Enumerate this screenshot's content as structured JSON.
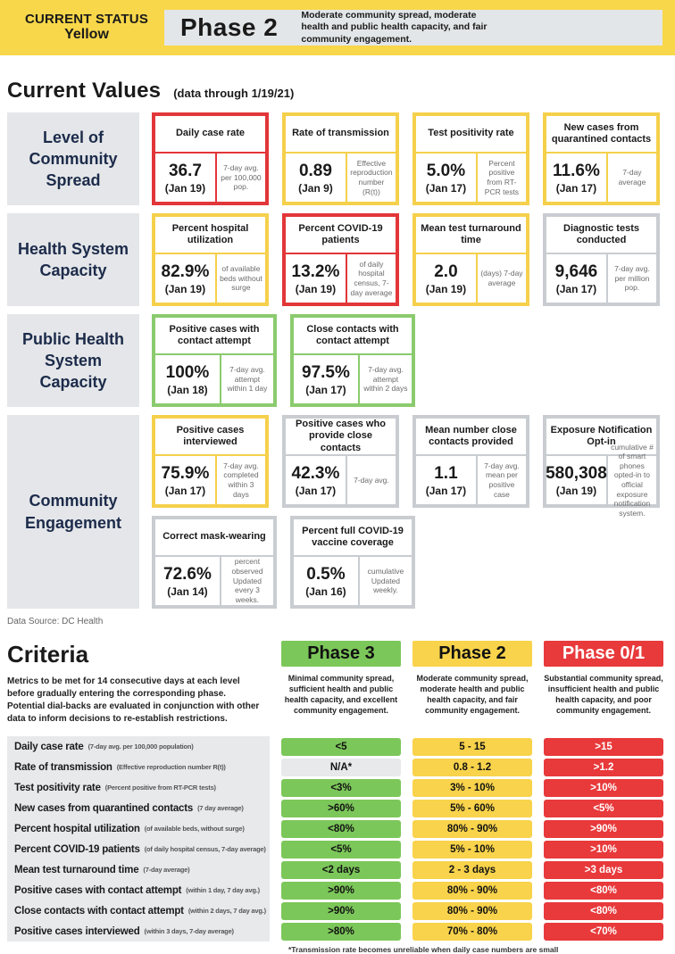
{
  "banner": {
    "status_label": "CURRENT STATUS",
    "status_value": "Yellow",
    "phase": "Phase 2",
    "phase_description": "Moderate community spread, moderate health and public health capacity, and fair community engagement."
  },
  "current_values": {
    "title": "Current Values",
    "note": "(data through 1/19/21)",
    "groups": [
      {
        "label": "Level of Community Spread",
        "rows": [
          [
            {
              "title": "Daily case rate",
              "value": "36.7",
              "date": "(Jan 19)",
              "desc": "7-day avg. per 100,000 pop.",
              "status": "red"
            },
            {
              "title": "Rate of transmission",
              "value": "0.89",
              "date": "(Jan 9)",
              "desc": "Effective reproduction number (R(t))",
              "status": "yellow"
            },
            {
              "title": "Test positivity rate",
              "value": "5.0%",
              "date": "(Jan 17)",
              "desc": "Percent positive from RT-PCR tests",
              "status": "yellow"
            },
            {
              "title": "New cases from quarantined contacts",
              "value": "11.6%",
              "date": "(Jan 17)",
              "desc": "7-day average",
              "status": "yellow"
            }
          ]
        ]
      },
      {
        "label": "Health System Capacity",
        "rows": [
          [
            {
              "title": "Percent hospital utilization",
              "value": "82.9%",
              "date": "(Jan 19)",
              "desc": "of available beds without surge",
              "status": "yellow"
            },
            {
              "title": "Percent COVID-19 patients",
              "value": "13.2%",
              "date": "(Jan 19)",
              "desc": "of daily hospital census, 7-day average",
              "status": "red"
            },
            {
              "title": "Mean test turnaround time",
              "value": "2.0",
              "date": "(Jan 19)",
              "desc": "(days) 7-day average",
              "status": "yellow"
            },
            {
              "title": "Diagnostic tests conducted",
              "value": "9,646",
              "date": "(Jan 17)",
              "desc": "7-day avg. per million pop.",
              "status": "gray"
            }
          ]
        ]
      },
      {
        "label": "Public Health System Capacity",
        "rows": [
          [
            {
              "title": "Positive cases with contact attempt",
              "value": "100%",
              "date": "(Jan 18)",
              "desc": "7-day avg. attempt within 1 day",
              "status": "green"
            },
            {
              "title": "Close contacts with contact attempt",
              "value": "97.5%",
              "date": "(Jan 17)",
              "desc": "7-day avg. attempt within 2 days",
              "status": "green"
            }
          ]
        ]
      },
      {
        "label": "Community Engagement",
        "rows": [
          [
            {
              "title": "Positive cases interviewed",
              "value": "75.9%",
              "date": "(Jan 17)",
              "desc": "7-day avg. completed within 3 days",
              "status": "yellow"
            },
            {
              "title": "Positive cases who provide close contacts",
              "value": "42.3%",
              "date": "(Jan 17)",
              "desc": "7-day avg.",
              "status": "gray"
            },
            {
              "title": "Mean number close contacts provided",
              "value": "1.1",
              "date": "(Jan 17)",
              "desc": "7-day avg. mean per positive case",
              "status": "gray"
            },
            {
              "title": "Exposure Notification Opt-in",
              "value": "580,308",
              "date": "(Jan 19)",
              "desc": "cumulative # of smart phones opted-in to official exposure notification system.",
              "status": "gray"
            }
          ],
          [
            {
              "title": "Correct mask-wearing",
              "value": "72.6%",
              "date": "(Jan 14)",
              "desc": "percent observed Updated every 3 weeks.",
              "status": "gray"
            },
            {
              "title": "Percent full COVID-19 vaccine coverage",
              "value": "0.5%",
              "date": "(Jan 16)",
              "desc": "cumulative Updated weekly.",
              "status": "gray"
            }
          ]
        ]
      }
    ]
  },
  "data_source": "Data Source: DC Health",
  "criteria": {
    "title": "Criteria",
    "description": "Metrics to be met for 14 consecutive days at each level before gradually entering the corresponding phase. Potential dial-backs are evaluated in conjunction with other data to inform decisions to re-establish restrictions.",
    "phases": [
      {
        "name": "Phase 3",
        "color": "green",
        "description": "Minimal community spread, sufficient health and public health capacity, and excellent community engagement."
      },
      {
        "name": "Phase 2",
        "color": "yellow",
        "description": "Moderate community spread, moderate health and public health capacity, and fair community engagement."
      },
      {
        "name": "Phase 0/1",
        "color": "red",
        "description": "Substantial community spread, insufficient health and public health capacity, and poor community engagement."
      }
    ],
    "rows": [
      {
        "label": "Daily case rate",
        "sublabel": "(7-day avg. per 100,000 population)",
        "values": [
          {
            "text": "<5",
            "color": "green"
          },
          {
            "text": "5 - 15",
            "color": "yellow"
          },
          {
            "text": ">15",
            "color": "red"
          }
        ]
      },
      {
        "label": "Rate of transmission",
        "sublabel": "(Effective reproduction number R(t))",
        "values": [
          {
            "text": "N/A*",
            "color": "gray"
          },
          {
            "text": "0.8 - 1.2",
            "color": "yellow"
          },
          {
            "text": ">1.2",
            "color": "red"
          }
        ]
      },
      {
        "label": "Test positivity rate",
        "sublabel": "(Percent positive from RT-PCR tests)",
        "values": [
          {
            "text": "<3%",
            "color": "green"
          },
          {
            "text": "3% - 10%",
            "color": "yellow"
          },
          {
            "text": ">10%",
            "color": "red"
          }
        ]
      },
      {
        "label": "New cases from quarantined contacts",
        "sublabel": "(7 day average)",
        "values": [
          {
            "text": ">60%",
            "color": "green"
          },
          {
            "text": "5% - 60%",
            "color": "yellow"
          },
          {
            "text": "<5%",
            "color": "red"
          }
        ]
      },
      {
        "label": "Percent hospital utilization",
        "sublabel": "(of available beds, without surge)",
        "values": [
          {
            "text": "<80%",
            "color": "green"
          },
          {
            "text": "80% - 90%",
            "color": "yellow"
          },
          {
            "text": ">90%",
            "color": "red"
          }
        ]
      },
      {
        "label": "Percent COVID-19 patients",
        "sublabel": "(of daily hospital census, 7-day average)",
        "values": [
          {
            "text": "<5%",
            "color": "green"
          },
          {
            "text": "5% - 10%",
            "color": "yellow"
          },
          {
            "text": ">10%",
            "color": "red"
          }
        ]
      },
      {
        "label": "Mean test turnaround time",
        "sublabel": "(7-day average)",
        "values": [
          {
            "text": "<2 days",
            "color": "green"
          },
          {
            "text": "2 - 3 days",
            "color": "yellow"
          },
          {
            "text": ">3 days",
            "color": "red"
          }
        ]
      },
      {
        "label": "Positive cases with contact attempt",
        "sublabel": "(within 1 day, 7 day avg.)",
        "values": [
          {
            "text": ">90%",
            "color": "green"
          },
          {
            "text": "80% - 90%",
            "color": "yellow"
          },
          {
            "text": "<80%",
            "color": "red"
          }
        ]
      },
      {
        "label": "Close contacts with contact attempt",
        "sublabel": "(within 2 days, 7 day avg.)",
        "values": [
          {
            "text": ">90%",
            "color": "green"
          },
          {
            "text": "80% - 90%",
            "color": "yellow"
          },
          {
            "text": "<80%",
            "color": "red"
          }
        ]
      },
      {
        "label": "Positive cases interviewed",
        "sublabel": "(within 3 days, 7-day average)",
        "values": [
          {
            "text": ">80%",
            "color": "green"
          },
          {
            "text": "70% - 80%",
            "color": "yellow"
          },
          {
            "text": "<70%",
            "color": "red"
          }
        ]
      }
    ],
    "footnote": "*Transmission rate becomes unreliable when daily case numbers are small"
  },
  "colors": {
    "banner_yellow": "#F8D74A",
    "panel_gray": "#E4E6E9",
    "navy_text": "#1C2B4A",
    "status_red": "#E23639",
    "status_yellow": "#F5D04B",
    "status_green": "#8BCB6E",
    "status_gray": "#C9CDD1",
    "pill_green": "#7CC75A",
    "pill_yellow": "#F8D34B",
    "pill_red": "#E8393B",
    "pill_gray": "#E7E9EB"
  }
}
